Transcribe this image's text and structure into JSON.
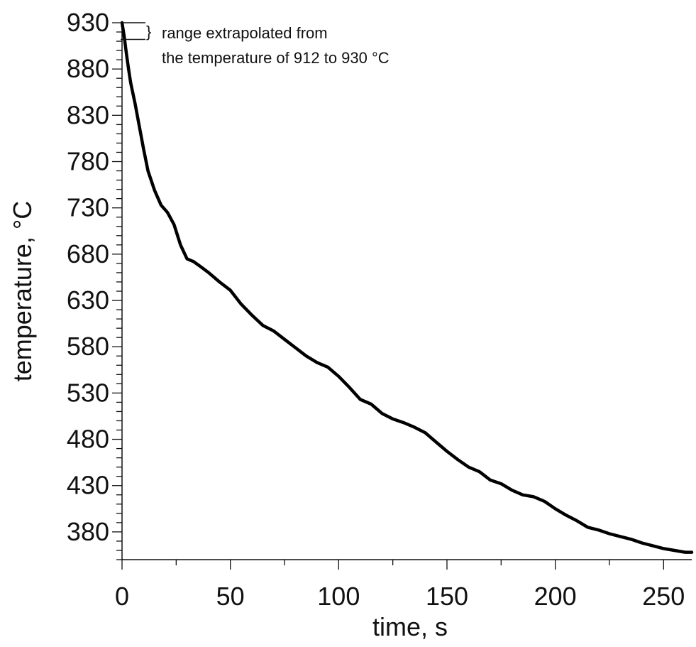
{
  "chart_data": {
    "type": "line",
    "xlabel": "time, s",
    "ylabel": "temperature, °C",
    "xlim": [
      0,
      263
    ],
    "ylim": [
      350,
      930
    ],
    "x_ticks": [
      0,
      50,
      100,
      150,
      200,
      250
    ],
    "y_ticks": [
      380,
      430,
      480,
      530,
      580,
      630,
      680,
      730,
      780,
      830,
      880,
      930
    ],
    "grid": false,
    "colors": {
      "series": "#000000",
      "axis": "#111111"
    },
    "annotation": {
      "line1": "range extrapolated from",
      "line2": "the temperature of 912 to 930 °C",
      "bracket_range": [
        912,
        930
      ]
    },
    "series": [
      {
        "x": [
          0,
          1,
          2,
          3,
          4,
          6,
          8,
          10,
          12,
          15,
          18,
          21,
          24,
          27,
          30,
          33,
          36,
          40,
          45,
          50,
          55,
          60,
          65,
          70,
          75,
          80,
          85,
          90,
          95,
          100,
          105,
          110,
          115,
          120,
          125,
          130,
          135,
          140,
          145,
          150,
          155,
          160,
          165,
          170,
          175,
          180,
          185,
          190,
          195,
          200,
          205,
          210,
          215,
          220,
          225,
          230,
          235,
          240,
          245,
          250,
          255,
          260,
          263
        ],
        "y": [
          930,
          915,
          897,
          880,
          865,
          843,
          818,
          793,
          770,
          749,
          733,
          725,
          712,
          690,
          675,
          672,
          667,
          660,
          650,
          641,
          626,
          614,
          603,
          597,
          588,
          579,
          570,
          563,
          558,
          548,
          536,
          523,
          518,
          508,
          502,
          498,
          493,
          487,
          477,
          467,
          458,
          450,
          445,
          436,
          432,
          425,
          420,
          418,
          413,
          405,
          398,
          392,
          385,
          382,
          378,
          375,
          372,
          368,
          365,
          362,
          360,
          358,
          358
        ]
      }
    ]
  }
}
